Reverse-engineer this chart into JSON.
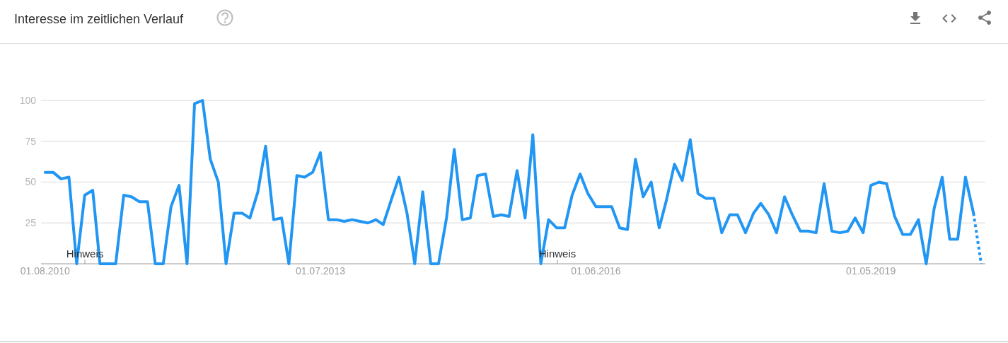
{
  "chart_data": {
    "type": "line",
    "title": "Interesse im zeitlichen Verlauf",
    "x": [
      "2010-08",
      "2010-09",
      "2010-10",
      "2010-11",
      "2010-12",
      "2011-01",
      "2011-02",
      "2011-03",
      "2011-04",
      "2011-05",
      "2011-06",
      "2011-07",
      "2011-08",
      "2011-09",
      "2011-10",
      "2011-11",
      "2011-12",
      "2012-01",
      "2012-02",
      "2012-03",
      "2012-04",
      "2012-05",
      "2012-06",
      "2012-07",
      "2012-08",
      "2012-09",
      "2012-10",
      "2012-11",
      "2012-12",
      "2013-01",
      "2013-02",
      "2013-03",
      "2013-04",
      "2013-05",
      "2013-06",
      "2013-07",
      "2013-08",
      "2013-09",
      "2013-10",
      "2013-11",
      "2013-12",
      "2014-01",
      "2014-02",
      "2014-03",
      "2014-04",
      "2014-05",
      "2014-06",
      "2014-07",
      "2014-08",
      "2014-09",
      "2014-10",
      "2014-11",
      "2014-12",
      "2015-01",
      "2015-02",
      "2015-03",
      "2015-04",
      "2015-05",
      "2015-06",
      "2015-07",
      "2015-08",
      "2015-09",
      "2015-10",
      "2015-11",
      "2015-12",
      "2016-01",
      "2016-02",
      "2016-03",
      "2016-04",
      "2016-05",
      "2016-06",
      "2016-07",
      "2016-08",
      "2016-09",
      "2016-10",
      "2016-11",
      "2016-12",
      "2017-01",
      "2017-02",
      "2017-03",
      "2017-04",
      "2017-05",
      "2017-06",
      "2017-07",
      "2017-08",
      "2017-09",
      "2017-10",
      "2017-11",
      "2017-12",
      "2018-01",
      "2018-02",
      "2018-03",
      "2018-04",
      "2018-05",
      "2018-06",
      "2018-07",
      "2018-08",
      "2018-09",
      "2018-10",
      "2018-11",
      "2018-12",
      "2019-01",
      "2019-02",
      "2019-03",
      "2019-04",
      "2019-05",
      "2019-06",
      "2019-07",
      "2019-08",
      "2019-09",
      "2019-10",
      "2019-11",
      "2019-12",
      "2020-01",
      "2020-02",
      "2020-03",
      "2020-04",
      "2020-05",
      "2020-06"
    ],
    "series": [
      {
        "color": "#2196f3",
        "line_style": "solid",
        "values": [
          56,
          56,
          52,
          53,
          0,
          42,
          45,
          0,
          0,
          0,
          42,
          41,
          38,
          38,
          0,
          0,
          35,
          48,
          0,
          98,
          100,
          64,
          50,
          0,
          31,
          31,
          28,
          44,
          72,
          27,
          28,
          0,
          54,
          53,
          56,
          68,
          27,
          27,
          26,
          27,
          26,
          25,
          27,
          24,
          39,
          53,
          31,
          0,
          44,
          0,
          0,
          28,
          70,
          27,
          28,
          54,
          55,
          29,
          30,
          29,
          57,
          28,
          79,
          0,
          27,
          22,
          22,
          42,
          55,
          43,
          35,
          35,
          35,
          22,
          21,
          64,
          41,
          50,
          22,
          39,
          61,
          51,
          76,
          43,
          40,
          40,
          19,
          30,
          30,
          19,
          31,
          37,
          30,
          19,
          41,
          30,
          20,
          20,
          19,
          49,
          20,
          19,
          20,
          28,
          19,
          48,
          50,
          49,
          29,
          18,
          18,
          27,
          0,
          34,
          53,
          15,
          15,
          53,
          31
        ]
      },
      {
        "color": "#2196f3",
        "line_style": "dotted",
        "x": [
          "2020-06",
          "2020-07"
        ],
        "values": [
          31,
          0
        ]
      }
    ],
    "xlim": [
      "2010-07-16",
      "2020-07-17"
    ],
    "xticks": [
      {
        "value": "2010-08-01",
        "label": "01.08.2010"
      },
      {
        "value": "2013-07-01",
        "label": "01.07.2013"
      },
      {
        "value": "2016-06-01",
        "label": "01.06.2016"
      },
      {
        "value": "2019-05-01",
        "label": "01.05.2019"
      }
    ],
    "ylim": [
      0,
      100
    ],
    "yticks": [
      25,
      50,
      75,
      100
    ],
    "grid": "y",
    "annotations": [
      "Hinweis",
      "Hinweis"
    ]
  }
}
